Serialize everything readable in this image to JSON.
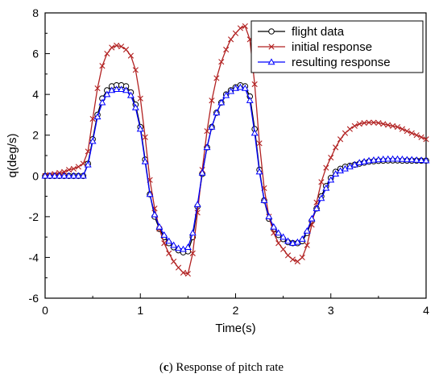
{
  "caption": {
    "tag": "c",
    "text": "Response of pitch rate"
  },
  "chart_data": {
    "type": "line",
    "xlabel": "Time(s)",
    "ylabel": "q(deg/s)",
    "xlim": [
      0,
      4
    ],
    "ylim": [
      -6,
      8
    ],
    "xticks": [
      0,
      1,
      2,
      3,
      4
    ],
    "yticks": [
      -6,
      -4,
      -2,
      0,
      2,
      4,
      6,
      8
    ],
    "grid": false,
    "legend_position": "top-right",
    "series": [
      {
        "name": "flight data",
        "color": "#000000",
        "marker": "circle",
        "x": [
          0,
          0.05,
          0.1,
          0.15,
          0.2,
          0.25,
          0.3,
          0.35,
          0.4,
          0.45,
          0.5,
          0.55,
          0.6,
          0.65,
          0.7,
          0.75,
          0.8,
          0.85,
          0.9,
          0.95,
          1.0,
          1.05,
          1.1,
          1.15,
          1.2,
          1.25,
          1.3,
          1.35,
          1.4,
          1.45,
          1.5,
          1.55,
          1.6,
          1.65,
          1.7,
          1.75,
          1.8,
          1.85,
          1.9,
          1.95,
          2.0,
          2.05,
          2.1,
          2.15,
          2.2,
          2.25,
          2.3,
          2.35,
          2.4,
          2.45,
          2.5,
          2.55,
          2.6,
          2.65,
          2.7,
          2.75,
          2.8,
          2.85,
          2.9,
          2.95,
          3.0,
          3.05,
          3.1,
          3.15,
          3.2,
          3.25,
          3.3,
          3.35,
          3.4,
          3.45,
          3.5,
          3.55,
          3.6,
          3.65,
          3.7,
          3.75,
          3.8,
          3.85,
          3.9,
          3.95,
          4.0
        ],
        "y": [
          0.0,
          0.0,
          0.0,
          0.0,
          0.0,
          0.0,
          0.0,
          0.0,
          0.0,
          0.6,
          1.8,
          3.0,
          3.8,
          4.2,
          4.4,
          4.45,
          4.45,
          4.4,
          4.1,
          3.5,
          2.4,
          0.8,
          -0.9,
          -2.0,
          -2.6,
          -3.0,
          -3.3,
          -3.5,
          -3.65,
          -3.75,
          -3.7,
          -3.0,
          -1.5,
          0.1,
          1.4,
          2.4,
          3.1,
          3.6,
          4.0,
          4.2,
          4.35,
          4.45,
          4.4,
          3.9,
          2.3,
          0.3,
          -1.2,
          -2.1,
          -2.6,
          -2.9,
          -3.1,
          -3.25,
          -3.3,
          -3.3,
          -3.2,
          -2.8,
          -2.2,
          -1.6,
          -1.0,
          -0.5,
          -0.1,
          0.2,
          0.35,
          0.45,
          0.5,
          0.55,
          0.6,
          0.65,
          0.7,
          0.72,
          0.74,
          0.75,
          0.76,
          0.76,
          0.76,
          0.75,
          0.75,
          0.75,
          0.75,
          0.75,
          0.75
        ]
      },
      {
        "name": "initial response",
        "color": "#b22222",
        "marker": "x",
        "x": [
          0,
          0.05,
          0.1,
          0.15,
          0.2,
          0.25,
          0.3,
          0.35,
          0.4,
          0.45,
          0.5,
          0.55,
          0.6,
          0.65,
          0.7,
          0.75,
          0.8,
          0.85,
          0.9,
          0.95,
          1.0,
          1.05,
          1.1,
          1.15,
          1.2,
          1.25,
          1.3,
          1.35,
          1.4,
          1.45,
          1.5,
          1.55,
          1.6,
          1.65,
          1.7,
          1.75,
          1.8,
          1.85,
          1.9,
          1.95,
          2.0,
          2.05,
          2.1,
          2.15,
          2.2,
          2.25,
          2.3,
          2.35,
          2.4,
          2.45,
          2.5,
          2.55,
          2.6,
          2.65,
          2.7,
          2.75,
          2.8,
          2.85,
          2.9,
          2.95,
          3.0,
          3.05,
          3.1,
          3.15,
          3.2,
          3.25,
          3.3,
          3.35,
          3.4,
          3.45,
          3.5,
          3.55,
          3.6,
          3.65,
          3.7,
          3.75,
          3.8,
          3.85,
          3.9,
          3.95,
          4.0
        ],
        "y": [
          0.0,
          0.05,
          0.1,
          0.15,
          0.2,
          0.3,
          0.35,
          0.45,
          0.6,
          1.2,
          2.8,
          4.3,
          5.4,
          6.0,
          6.3,
          6.4,
          6.35,
          6.2,
          5.9,
          5.2,
          3.8,
          1.9,
          -0.2,
          -1.6,
          -2.6,
          -3.3,
          -3.8,
          -4.2,
          -4.5,
          -4.75,
          -4.8,
          -3.8,
          -1.8,
          0.3,
          2.2,
          3.7,
          4.8,
          5.6,
          6.2,
          6.7,
          7.0,
          7.25,
          7.35,
          6.7,
          4.5,
          1.6,
          -0.6,
          -2.0,
          -2.8,
          -3.3,
          -3.6,
          -3.9,
          -4.1,
          -4.2,
          -4.0,
          -3.4,
          -2.4,
          -1.3,
          -0.3,
          0.4,
          0.9,
          1.4,
          1.8,
          2.1,
          2.3,
          2.45,
          2.55,
          2.6,
          2.62,
          2.62,
          2.6,
          2.55,
          2.5,
          2.45,
          2.4,
          2.3,
          2.2,
          2.1,
          2.0,
          1.9,
          1.8
        ]
      },
      {
        "name": "resulting response",
        "color": "#0000ff",
        "marker": "triangle",
        "x": [
          0,
          0.05,
          0.1,
          0.15,
          0.2,
          0.25,
          0.3,
          0.35,
          0.4,
          0.45,
          0.5,
          0.55,
          0.6,
          0.65,
          0.7,
          0.75,
          0.8,
          0.85,
          0.9,
          0.95,
          1.0,
          1.05,
          1.1,
          1.15,
          1.2,
          1.25,
          1.3,
          1.35,
          1.4,
          1.45,
          1.5,
          1.55,
          1.6,
          1.65,
          1.7,
          1.75,
          1.8,
          1.85,
          1.9,
          1.95,
          2.0,
          2.05,
          2.1,
          2.15,
          2.2,
          2.25,
          2.3,
          2.35,
          2.4,
          2.45,
          2.5,
          2.55,
          2.6,
          2.65,
          2.7,
          2.75,
          2.8,
          2.85,
          2.9,
          2.95,
          3.0,
          3.05,
          3.1,
          3.15,
          3.2,
          3.25,
          3.3,
          3.35,
          3.4,
          3.45,
          3.5,
          3.55,
          3.6,
          3.65,
          3.7,
          3.75,
          3.8,
          3.85,
          3.9,
          3.95,
          4.0
        ],
        "y": [
          0.0,
          0.0,
          0.0,
          0.0,
          0.0,
          0.0,
          0.0,
          0.0,
          0.0,
          0.55,
          1.7,
          2.9,
          3.6,
          4.0,
          4.2,
          4.25,
          4.25,
          4.2,
          3.95,
          3.35,
          2.3,
          0.7,
          -0.9,
          -1.9,
          -2.5,
          -2.9,
          -3.2,
          -3.4,
          -3.55,
          -3.6,
          -3.5,
          -2.8,
          -1.4,
          0.15,
          1.4,
          2.4,
          3.1,
          3.6,
          3.95,
          4.15,
          4.3,
          4.35,
          4.3,
          3.7,
          2.1,
          0.2,
          -1.2,
          -2.0,
          -2.5,
          -2.8,
          -3.0,
          -3.2,
          -3.3,
          -3.25,
          -3.1,
          -2.7,
          -2.1,
          -1.6,
          -1.1,
          -0.6,
          -0.2,
          0.1,
          0.25,
          0.35,
          0.45,
          0.55,
          0.65,
          0.7,
          0.75,
          0.78,
          0.8,
          0.82,
          0.83,
          0.83,
          0.83,
          0.82,
          0.8,
          0.8,
          0.78,
          0.77,
          0.75
        ]
      }
    ]
  }
}
